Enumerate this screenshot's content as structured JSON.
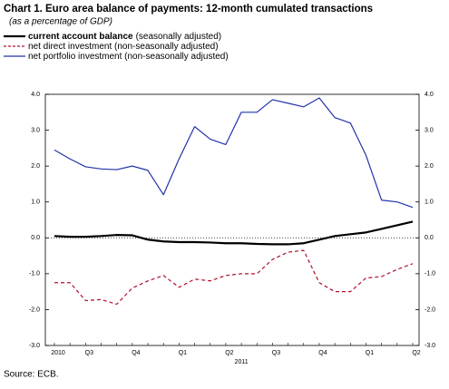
{
  "chart_data": {
    "type": "line",
    "title": "Chart 1. Euro area balance of payments: 12-month cumulated transactions",
    "subtitle": "(as a percentage of GDP)",
    "source": "Source: ECB.",
    "categories": [
      "2010",
      null,
      "Q3",
      null,
      null,
      "Q4",
      null,
      null,
      "Q1",
      null,
      null,
      "Q2",
      null,
      null,
      "Q3",
      null,
      null,
      "Q4",
      null,
      null,
      "Q1",
      null,
      null,
      "Q2"
    ],
    "categories_row2": [
      null,
      null,
      null,
      null,
      null,
      null,
      null,
      null,
      null,
      null,
      null,
      null,
      "2011",
      null,
      null,
      null,
      null,
      null,
      null,
      null,
      null,
      null,
      null,
      null
    ],
    "ylim": [
      -3,
      4
    ],
    "yticks": [
      {
        "value": -3,
        "label": "-3.0"
      },
      {
        "value": -2,
        "label": "-2.0"
      },
      {
        "value": -1,
        "label": "-1.0"
      },
      {
        "value": 0,
        "label": "0.0"
      },
      {
        "value": 1,
        "label": "1.0"
      },
      {
        "value": 2,
        "label": "2.0"
      },
      {
        "value": 3,
        "label": "3.0"
      },
      {
        "value": 4,
        "label": "4.0"
      }
    ],
    "series": [
      {
        "name": "current account balance",
        "name_note": "(seasonally adjusted)",
        "color": "#000000",
        "style": "solid",
        "width": 2.2,
        "values": [
          0.05,
          0.03,
          0.03,
          0.05,
          0.08,
          0.07,
          -0.05,
          -0.1,
          -0.12,
          -0.12,
          -0.13,
          -0.15,
          -0.15,
          -0.17,
          -0.18,
          -0.18,
          -0.15,
          -0.05,
          0.05,
          0.1,
          0.15,
          0.25,
          0.35,
          0.45
        ]
      },
      {
        "name": "net direct investment (non-seasonally adjusted)",
        "color": "#b0102a",
        "style": "dashed",
        "width": 1.2,
        "values": [
          -1.25,
          -1.25,
          -1.75,
          -1.72,
          -1.85,
          -1.4,
          -1.2,
          -1.05,
          -1.38,
          -1.15,
          -1.2,
          -1.05,
          -1.0,
          -1.0,
          -0.6,
          -0.4,
          -0.35,
          -1.25,
          -1.5,
          -1.5,
          -1.12,
          -1.08,
          -0.88,
          -0.72
        ]
      },
      {
        "name": "net portfolio investment (non-seasonally adjusted)",
        "color": "#2233aa",
        "style": "solid",
        "width": 1.2,
        "values": [
          2.45,
          2.2,
          1.98,
          1.92,
          1.9,
          2.0,
          1.88,
          1.2,
          2.2,
          3.1,
          2.75,
          2.6,
          3.5,
          3.5,
          3.85,
          3.75,
          3.65,
          3.9,
          3.35,
          3.2,
          2.3,
          1.05,
          1.0,
          0.85
        ]
      }
    ]
  }
}
